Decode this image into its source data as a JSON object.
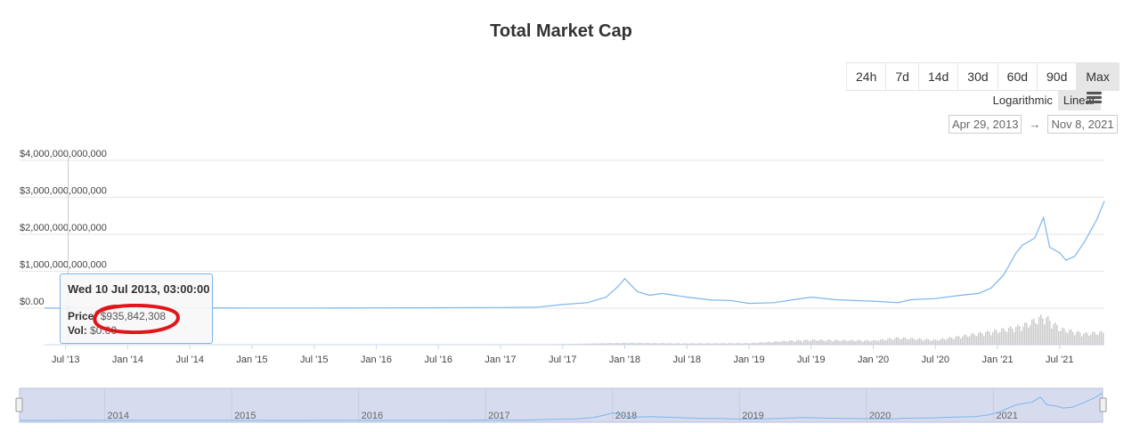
{
  "title": "Total Market Cap",
  "range_buttons": [
    "24h",
    "7d",
    "14d",
    "30d",
    "60d",
    "90d",
    "Max"
  ],
  "active_range": "Max",
  "scale": {
    "log_label": "Logarithmic",
    "linear_label": "Linear",
    "active": "Linear"
  },
  "date_range": {
    "from": "Apr 29, 2013",
    "arrow": "→",
    "to": "Nov 8, 2021"
  },
  "tooltip": {
    "date": "Wed 10 Jul 2013, 03:00:00",
    "price_label": "Price:",
    "price_value": "$935,842,308",
    "vol_label": "Vol:",
    "vol_value": "$0.00"
  },
  "colors": {
    "series": "#7cb5ec",
    "volume": "#cccccc",
    "navigator_fill": "#d6dcee",
    "annotation": "#e0161b"
  },
  "chart_data": {
    "type": "line",
    "title": "Total Market Cap",
    "yticks": [
      "$0.00",
      "$1,000,000,000,000",
      "$2,000,000,000,000",
      "$3,000,000,000,000",
      "$4,000,000,000,000"
    ],
    "ylim": [
      0,
      4000000000000
    ],
    "xticks": [
      "Jul '13",
      "Jan '14",
      "Jul '14",
      "Jan '15",
      "Jul '15",
      "Jan '16",
      "Jul '16",
      "Jan '17",
      "Jul '17",
      "Jan '18",
      "Jul '18",
      "Jan '19",
      "Jul '19",
      "Jan '20",
      "Jul '20",
      "Jan '21",
      "Jul '21"
    ],
    "xlim": [
      2013.33,
      2021.86
    ],
    "grid": true,
    "series": [
      {
        "x": [
          2013.33,
          2013.52,
          2013.9,
          2014.0,
          2014.5,
          2015.0,
          2015.5,
          2016.0,
          2016.5,
          2017.0,
          2017.3,
          2017.5,
          2017.7,
          2017.85,
          2017.95,
          2018.0,
          2018.1,
          2018.2,
          2018.3,
          2018.5,
          2018.7,
          2018.85,
          2019.0,
          2019.2,
          2019.4,
          2019.5,
          2019.7,
          2019.9,
          2020.0,
          2020.2,
          2020.3,
          2020.5,
          2020.7,
          2020.85,
          2020.95,
          2021.05,
          2021.15,
          2021.2,
          2021.3,
          2021.37,
          2021.42,
          2021.5,
          2021.55,
          2021.62,
          2021.7,
          2021.75,
          2021.8,
          2021.86
        ],
        "values": [
          1500000000,
          935842308,
          8000000000,
          12000000000,
          8000000000,
          5000000000,
          4000000000,
          7000000000,
          11000000000,
          17000000000,
          30000000000,
          100000000000,
          150000000000,
          300000000000,
          600000000000,
          800000000000,
          450000000000,
          350000000000,
          400000000000,
          300000000000,
          220000000000,
          210000000000,
          130000000000,
          150000000000,
          250000000000,
          300000000000,
          230000000000,
          200000000000,
          190000000000,
          150000000000,
          230000000000,
          260000000000,
          350000000000,
          400000000000,
          550000000000,
          900000000000,
          1500000000000,
          1700000000000,
          1900000000000,
          2450000000000,
          1650000000000,
          1500000000000,
          1300000000000,
          1400000000000,
          1800000000000,
          2100000000000,
          2400000000000,
          2900000000000
        ]
      }
    ],
    "volume": {
      "x": [
        2013.33,
        2017.0,
        2017.5,
        2018.0,
        2018.5,
        2019.0,
        2019.3,
        2019.5,
        2020.0,
        2020.2,
        2020.5,
        2021.0,
        2021.2,
        2021.37,
        2021.5,
        2021.7,
        2021.86
      ],
      "values": [
        0,
        0.01,
        0.02,
        0.06,
        0.04,
        0.05,
        0.12,
        0.15,
        0.13,
        0.22,
        0.15,
        0.45,
        0.6,
        0.9,
        0.5,
        0.35,
        0.4
      ]
    },
    "navigator": {
      "labels": [
        "2014",
        "2015",
        "2016",
        "2017",
        "2018",
        "2019",
        "2020",
        "2021"
      ]
    }
  }
}
